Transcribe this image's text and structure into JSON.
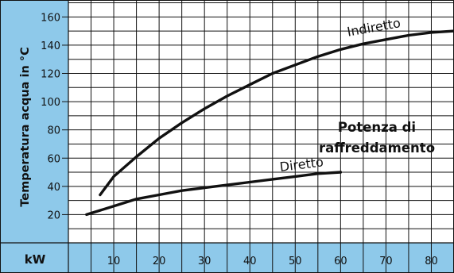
{
  "colors": {
    "axis_band": "#8ec9ea",
    "plot_background": "#ffffff",
    "grid": "#111111",
    "curve": "#111111"
  },
  "chart_data": {
    "type": "line",
    "ylabel": "Temperatura acqua in °C",
    "xlabel": "kW",
    "annotation": [
      "Potenza di",
      "raffreddamento"
    ],
    "xlim": [
      0,
      85
    ],
    "ylim": [
      0,
      172
    ],
    "x_ticks": [
      10,
      20,
      30,
      40,
      50,
      60,
      70,
      80
    ],
    "y_ticks": [
      20,
      40,
      60,
      80,
      100,
      120,
      140,
      160
    ],
    "grid": true,
    "series": [
      {
        "name": "Indiretto",
        "x": [
          7,
          10,
          15,
          20,
          25,
          30,
          35,
          40,
          45,
          50,
          55,
          60,
          65,
          70,
          75,
          80,
          85
        ],
        "y": [
          34,
          47,
          61,
          74,
          85,
          95,
          104,
          112,
          120,
          126,
          132,
          137,
          141,
          144,
          147,
          149,
          150
        ]
      },
      {
        "name": "Diretto",
        "x": [
          4,
          10,
          15,
          20,
          25,
          30,
          35,
          40,
          45,
          50,
          55,
          60
        ],
        "y": [
          20,
          26,
          31,
          34,
          37,
          39,
          41,
          43,
          45,
          47,
          49,
          50
        ]
      }
    ]
  }
}
